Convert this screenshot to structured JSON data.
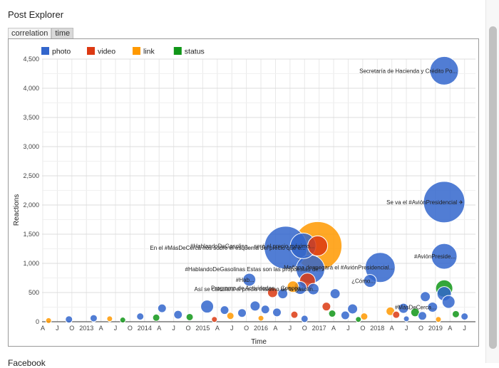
{
  "page": {
    "title": "Post Explorer",
    "next_heading": "Facebook"
  },
  "tabs": [
    {
      "label": "correlation",
      "active": false
    },
    {
      "label": "time",
      "active": true
    }
  ],
  "chart_data": {
    "type": "scatter",
    "xlabel": "Time",
    "ylabel": "Reactions",
    "ylim": [
      0,
      4500
    ],
    "yticks": [
      "0",
      "500",
      "1,000",
      "1,500",
      "2,000",
      "2,500",
      "3,000",
      "3,500",
      "4,000",
      "4,500"
    ],
    "x_ticks": [
      "A",
      "J",
      "O",
      "2013",
      "A",
      "J",
      "O",
      "2014",
      "A",
      "J",
      "O",
      "2015",
      "A",
      "J",
      "O",
      "2016",
      "A",
      "J",
      "O",
      "2017",
      "A",
      "J",
      "O",
      "2018",
      "A",
      "J",
      "O",
      "2019",
      "A",
      "J"
    ],
    "legend": {
      "position": "top-left",
      "entries": [
        {
          "name": "photo",
          "color": "#3366cc"
        },
        {
          "name": "video",
          "color": "#dc3912"
        },
        {
          "name": "link",
          "color": "#ff9900"
        },
        {
          "name": "status",
          "color": "#109618"
        }
      ]
    },
    "points": [
      {
        "t": 27.6,
        "y": 4300,
        "type": "photo",
        "size": 20,
        "label": "Secretaría de Hacienda y Crédito Po..."
      },
      {
        "t": 27.6,
        "y": 2050,
        "type": "photo",
        "size": 29,
        "label": "Se va el #AviónPresidencial ✈"
      },
      {
        "t": 27.6,
        "y": 1120,
        "type": "photo",
        "size": 18,
        "label": "#AviónPreside..."
      },
      {
        "t": 27.6,
        "y": 570,
        "type": "status",
        "size": 12,
        "label": ""
      },
      {
        "t": 27.6,
        "y": 480,
        "type": "photo",
        "size": 10,
        "label": ""
      },
      {
        "t": 18.9,
        "y": 1300,
        "type": "link",
        "size": 34,
        "label": ""
      },
      {
        "t": 18.9,
        "y": 1300,
        "type": "video",
        "size": 14,
        "label": ""
      },
      {
        "t": 17.9,
        "y": 1300,
        "type": "photo",
        "size": 18,
        "label": "#HablandoDeGasolina... será el precio máximo..."
      },
      {
        "t": 16.7,
        "y": 1270,
        "type": "photo",
        "size": 30,
        "label": "En el #MásDeCerca nos sobre el esquema del precio que e..."
      },
      {
        "t": 18.4,
        "y": 900,
        "type": "photo",
        "size": 20,
        "label": "#HablandoDeGasolinas Estas son las propuestas de..."
      },
      {
        "t": 23.2,
        "y": 930,
        "type": "photo",
        "size": 21,
        "label": "Mañana despegará el #AviónPresidencial..."
      },
      {
        "t": 22.5,
        "y": 700,
        "type": "photo",
        "size": 9,
        "label": "¿Cómo..."
      },
      {
        "t": 18.2,
        "y": 700,
        "type": "video",
        "size": 11,
        "label": ""
      },
      {
        "t": 17.7,
        "y": 580,
        "type": "photo",
        "size": 9,
        "label": "Programa de Actividades... Conoce..."
      },
      {
        "t": 18.6,
        "y": 560,
        "type": "photo",
        "size": 8,
        "label": "Así se calculará el precio máximo de la gasolin..."
      },
      {
        "t": 17.2,
        "y": 600,
        "type": "link",
        "size": 8,
        "label": ""
      },
      {
        "t": 14.2,
        "y": 720,
        "type": "photo",
        "size": 9,
        "label": "#Hab..."
      },
      {
        "t": 16.5,
        "y": 480,
        "type": "photo",
        "size": 7,
        "label": ""
      },
      {
        "t": 15.8,
        "y": 500,
        "type": "video",
        "size": 7,
        "label": ""
      },
      {
        "t": 20.1,
        "y": 480,
        "type": "photo",
        "size": 7,
        "label": ""
      },
      {
        "t": 26.3,
        "y": 430,
        "type": "photo",
        "size": 7,
        "label": ""
      },
      {
        "t": 27.9,
        "y": 340,
        "type": "photo",
        "size": 9,
        "label": ""
      },
      {
        "t": 26.8,
        "y": 250,
        "type": "photo",
        "size": 7,
        "label": "#MásDeCerca..."
      },
      {
        "t": 8.2,
        "y": 230,
        "type": "photo",
        "size": 6,
        "label": ""
      },
      {
        "t": 11.3,
        "y": 260,
        "type": "photo",
        "size": 9,
        "label": ""
      },
      {
        "t": 12.5,
        "y": 200,
        "type": "photo",
        "size": 6,
        "label": ""
      },
      {
        "t": 14.6,
        "y": 270,
        "type": "photo",
        "size": 7,
        "label": ""
      },
      {
        "t": 15.3,
        "y": 210,
        "type": "photo",
        "size": 6,
        "label": ""
      },
      {
        "t": 19.5,
        "y": 260,
        "type": "video",
        "size": 6,
        "label": ""
      },
      {
        "t": 21.3,
        "y": 220,
        "type": "photo",
        "size": 7,
        "label": ""
      },
      {
        "t": 23.9,
        "y": 180,
        "type": "link",
        "size": 6,
        "label": ""
      },
      {
        "t": 24.8,
        "y": 230,
        "type": "photo",
        "size": 7,
        "label": ""
      },
      {
        "t": 25.6,
        "y": 160,
        "type": "status",
        "size": 6,
        "label": ""
      },
      {
        "t": 1.8,
        "y": 40,
        "type": "photo",
        "size": 5,
        "label": ""
      },
      {
        "t": 3.5,
        "y": 60,
        "type": "photo",
        "size": 5,
        "label": ""
      },
      {
        "t": 4.6,
        "y": 50,
        "type": "link",
        "size": 4,
        "label": ""
      },
      {
        "t": 6.7,
        "y": 90,
        "type": "photo",
        "size": 5,
        "label": ""
      },
      {
        "t": 7.8,
        "y": 70,
        "type": "status",
        "size": 5,
        "label": ""
      },
      {
        "t": 9.3,
        "y": 120,
        "type": "photo",
        "size": 6,
        "label": ""
      },
      {
        "t": 10.1,
        "y": 80,
        "type": "status",
        "size": 5,
        "label": ""
      },
      {
        "t": 12.9,
        "y": 100,
        "type": "link",
        "size": 5,
        "label": ""
      },
      {
        "t": 13.7,
        "y": 150,
        "type": "photo",
        "size": 6,
        "label": ""
      },
      {
        "t": 16.1,
        "y": 160,
        "type": "photo",
        "size": 6,
        "label": ""
      },
      {
        "t": 17.3,
        "y": 120,
        "type": "video",
        "size": 5,
        "label": ""
      },
      {
        "t": 19.9,
        "y": 140,
        "type": "status",
        "size": 5,
        "label": ""
      },
      {
        "t": 20.8,
        "y": 110,
        "type": "photo",
        "size": 6,
        "label": ""
      },
      {
        "t": 22.1,
        "y": 90,
        "type": "link",
        "size": 5,
        "label": ""
      },
      {
        "t": 24.3,
        "y": 120,
        "type": "video",
        "size": 5,
        "label": ""
      },
      {
        "t": 26.1,
        "y": 100,
        "type": "photo",
        "size": 6,
        "label": ""
      },
      {
        "t": 28.4,
        "y": 130,
        "type": "status",
        "size": 5,
        "label": ""
      },
      {
        "t": 29.0,
        "y": 90,
        "type": "photo",
        "size": 5,
        "label": ""
      },
      {
        "t": 0.4,
        "y": 20,
        "type": "link",
        "size": 4,
        "label": ""
      },
      {
        "t": 5.5,
        "y": 30,
        "type": "status",
        "size": 4,
        "label": ""
      },
      {
        "t": 11.8,
        "y": 40,
        "type": "video",
        "size": 4,
        "label": ""
      },
      {
        "t": 15.0,
        "y": 60,
        "type": "link",
        "size": 4,
        "label": ""
      },
      {
        "t": 18.0,
        "y": 50,
        "type": "photo",
        "size": 5,
        "label": ""
      },
      {
        "t": 21.7,
        "y": 40,
        "type": "status",
        "size": 4,
        "label": ""
      },
      {
        "t": 25.0,
        "y": 50,
        "type": "photo",
        "size": 4,
        "label": ""
      },
      {
        "t": 27.2,
        "y": 40,
        "type": "link",
        "size": 4,
        "label": ""
      }
    ]
  }
}
